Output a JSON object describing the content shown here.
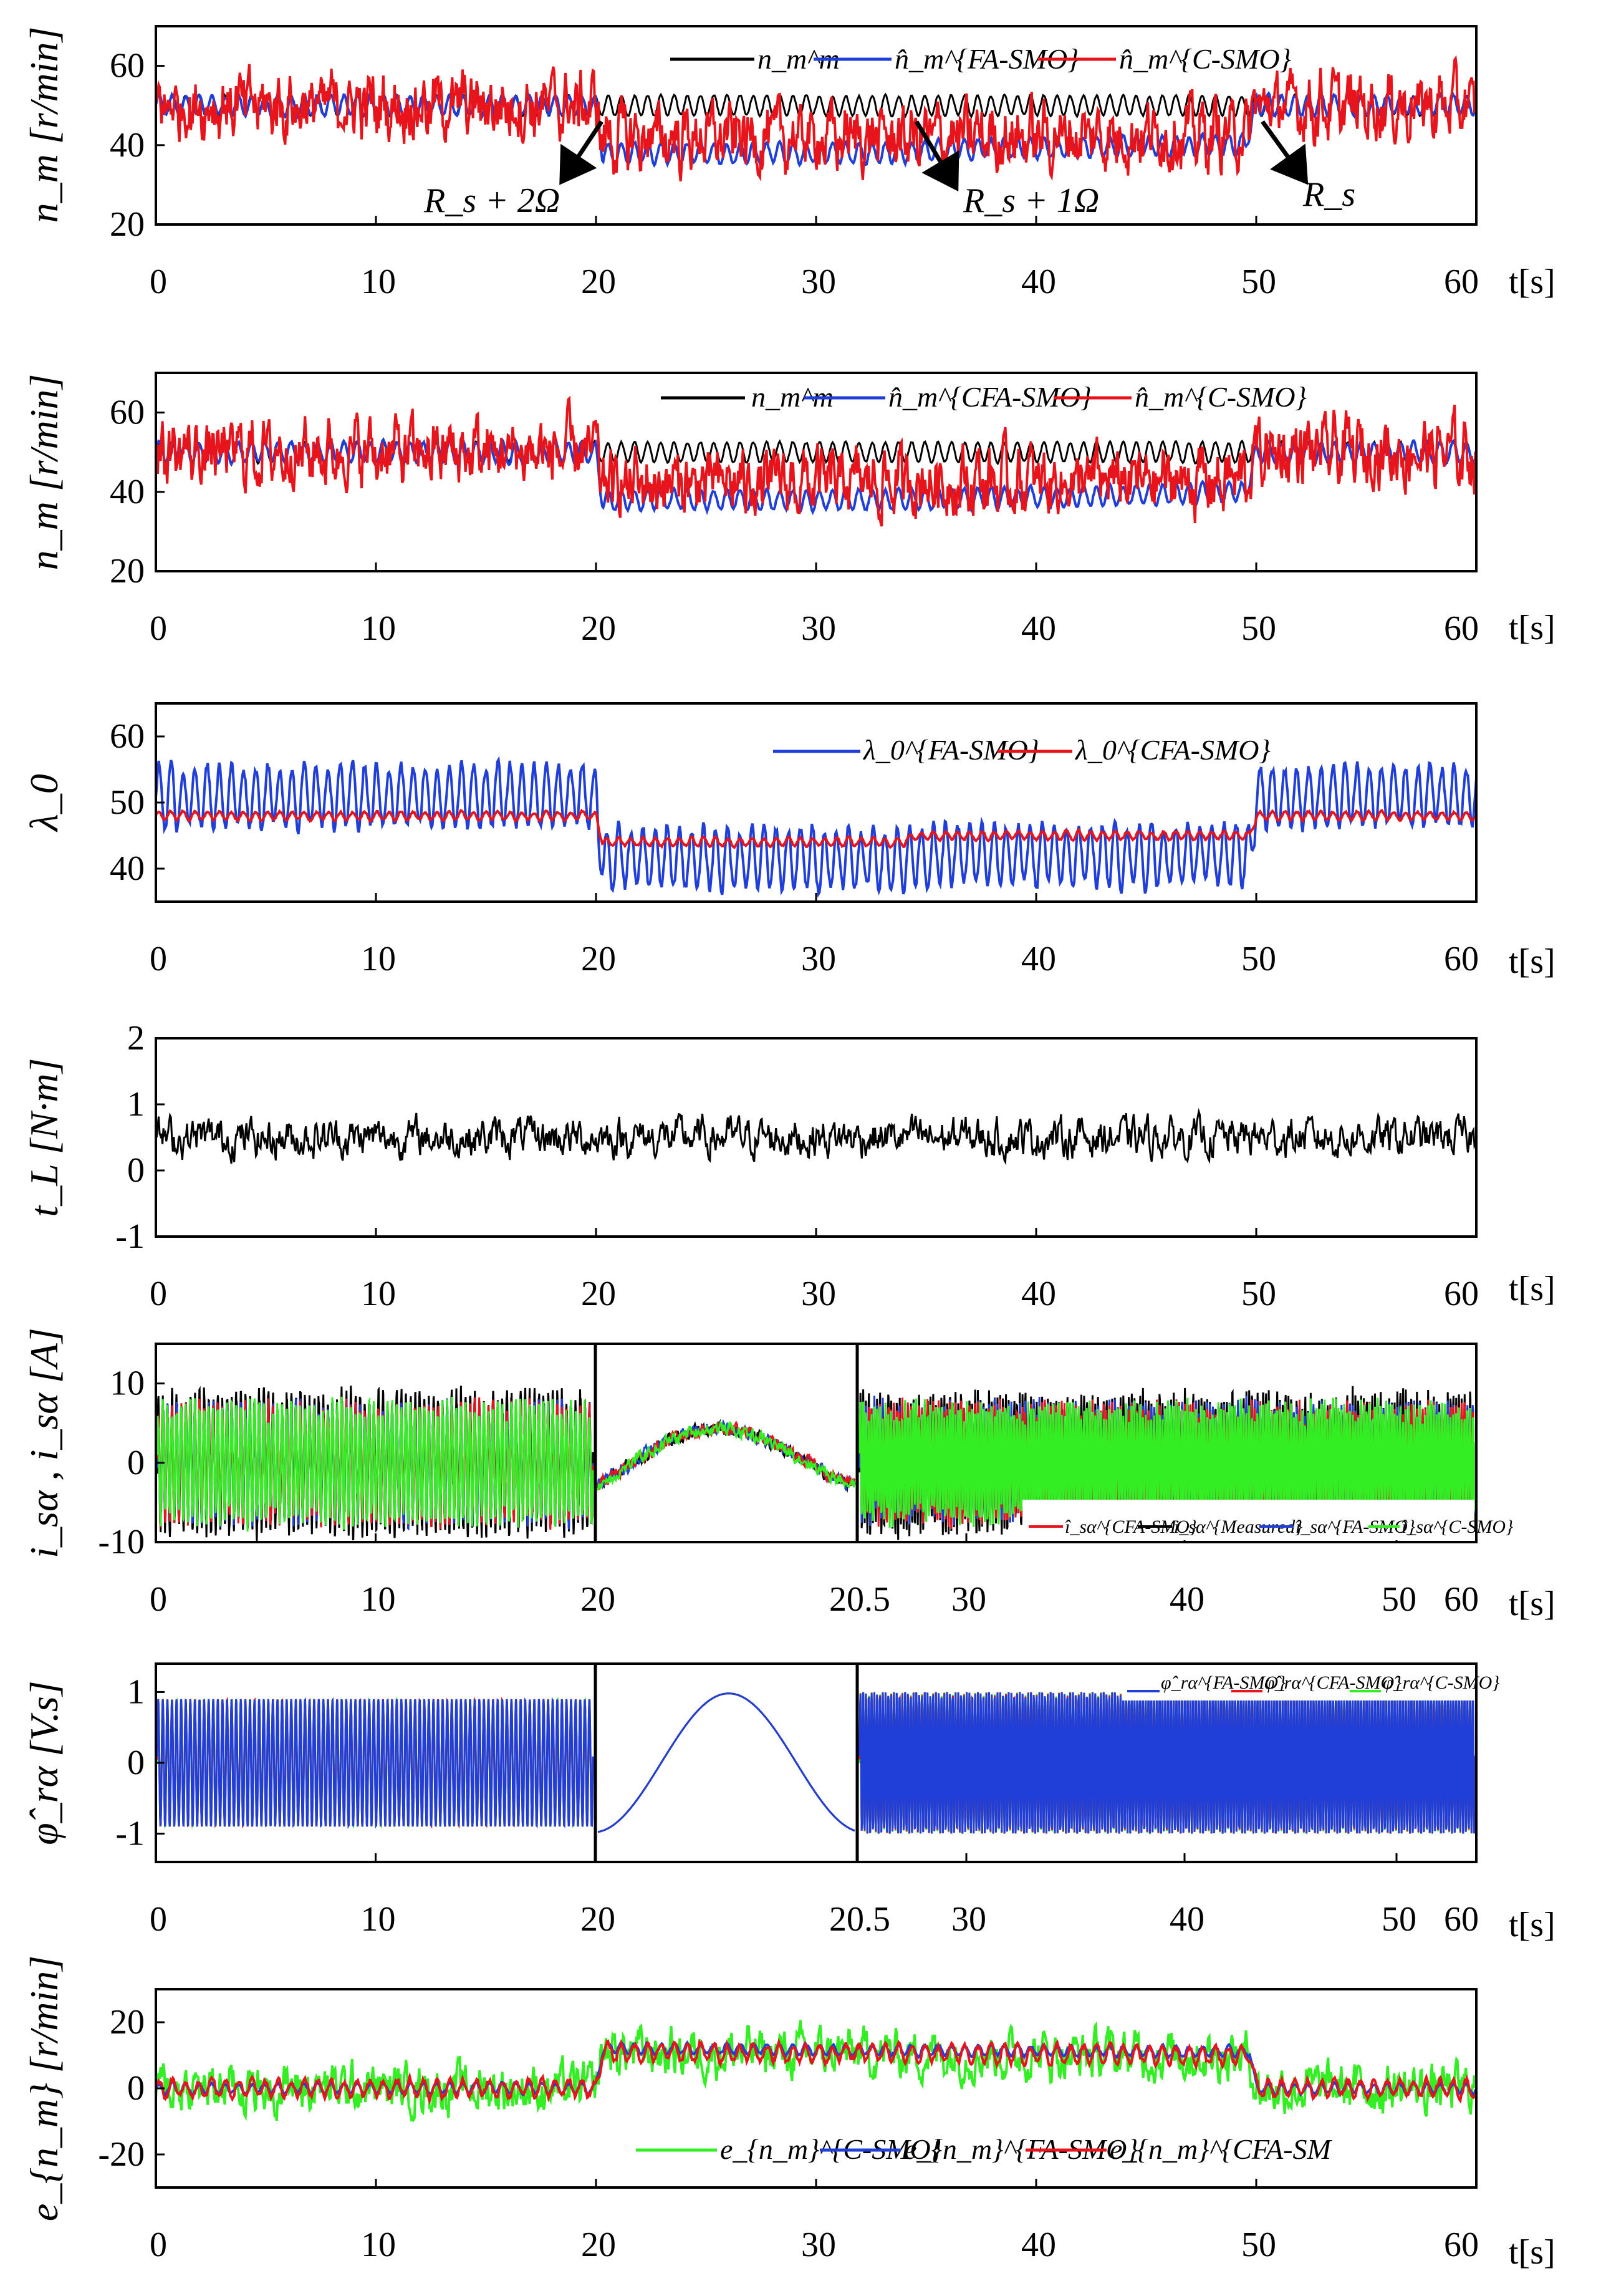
{
  "figure": {
    "colors": {
      "black": "#000000",
      "blue": "#1f3fd8",
      "red": "#e8141c",
      "green": "#33ee22",
      "axis": "#000000"
    }
  },
  "chart_data": [
    {
      "id": "p1",
      "type": "line",
      "ylabel": "n_m [r/min]",
      "xlabel": "t[s]",
      "xlim": [
        0,
        60
      ],
      "ylim": [
        20,
        70
      ],
      "yticks": [
        20,
        40,
        60
      ],
      "xticks": [
        "0",
        "10",
        "20",
        "30",
        "40",
        "50",
        "60"
      ],
      "legend_pos": "top-center",
      "series": [
        {
          "name": "n_m^m",
          "color": "black",
          "base": [
            [
              0,
              50
            ],
            [
              20,
              50
            ],
            [
              50,
              50
            ],
            [
              60,
              50
            ]
          ],
          "osc": 2.5,
          "period": 0.6,
          "noise": 0.3
        },
        {
          "name": "n̂_m^{FA-SMO}",
          "color": "blue",
          "base": [
            [
              0,
              50
            ],
            [
              20,
              50
            ],
            [
              20.3,
              38
            ],
            [
              34,
              38
            ],
            [
              36,
              39
            ],
            [
              49.5,
              40
            ],
            [
              50,
              50
            ],
            [
              60,
              50
            ]
          ],
          "osc": 2.5,
          "period": 0.6,
          "noise": 0.5
        },
        {
          "name": "n̂_m^{C-SMO}",
          "color": "red",
          "base": [
            [
              0,
              50
            ],
            [
              20,
              50
            ],
            [
              20.3,
              42
            ],
            [
              34,
              42
            ],
            [
              36,
              42
            ],
            [
              49.5,
              43
            ],
            [
              50,
              50
            ],
            [
              60,
              50
            ]
          ],
          "osc": 2.0,
          "period": 0.6,
          "noise": 7
        }
      ],
      "annotations": [
        "R_s + 2Ω",
        "R_s + 1Ω",
        "R_s"
      ]
    },
    {
      "id": "p2",
      "type": "line",
      "ylabel": "n_m [r/min]",
      "xlabel": "t[s]",
      "xlim": [
        0,
        60
      ],
      "ylim": [
        20,
        70
      ],
      "yticks": [
        20,
        40,
        60
      ],
      "xticks": [
        "0",
        "10",
        "20",
        "30",
        "40",
        "50",
        "60"
      ],
      "legend_pos": "top-center",
      "series": [
        {
          "name": "n_m^m",
          "color": "black",
          "base": [
            [
              0,
              50
            ],
            [
              20,
              50
            ],
            [
              50,
              50
            ],
            [
              60,
              50
            ]
          ],
          "osc": 2.5,
          "period": 0.6,
          "noise": 0.3
        },
        {
          "name": "n̂_m^{CFA-SMO}",
          "color": "blue",
          "base": [
            [
              0,
              50
            ],
            [
              20,
              50
            ],
            [
              20.3,
              38
            ],
            [
              34,
              38
            ],
            [
              49.5,
              40
            ],
            [
              50,
              50
            ],
            [
              60,
              50
            ]
          ],
          "osc": 2.5,
          "period": 0.6,
          "noise": 0.5
        },
        {
          "name": "n̂_m^{C-SMO}",
          "color": "red",
          "base": [
            [
              0,
              50
            ],
            [
              20,
              50
            ],
            [
              20.3,
              42
            ],
            [
              49.5,
              43
            ],
            [
              50,
              50
            ],
            [
              60,
              50
            ]
          ],
          "osc": 2.0,
          "period": 0.6,
          "noise": 7
        }
      ]
    },
    {
      "id": "p3",
      "type": "line",
      "ylabel": "λ_0",
      "xlabel": "t[s]",
      "xlim": [
        0,
        60
      ],
      "ylim": [
        35,
        65
      ],
      "yticks": [
        40,
        50,
        60
      ],
      "xticks": [
        "0",
        "10",
        "20",
        "30",
        "40",
        "50",
        "60"
      ],
      "legend_pos": "top-right",
      "series": [
        {
          "name": "λ_0^{FA-SMO}",
          "color": "blue",
          "base": [
            [
              0,
              51
            ],
            [
              20,
              51
            ],
            [
              20.3,
              41.5
            ],
            [
              34,
              41.5
            ],
            [
              34.5,
              42
            ],
            [
              49.7,
              42
            ],
            [
              50,
              51
            ],
            [
              60,
              51
            ]
          ],
          "osc": 4.5,
          "period": 0.55,
          "noise": 1
        },
        {
          "name": "λ_0^{CFA-SMO}",
          "color": "red",
          "base": [
            [
              0,
              48
            ],
            [
              20,
              48
            ],
            [
              20.3,
              44
            ],
            [
              34,
              44
            ],
            [
              34.5,
              45
            ],
            [
              49.7,
              45
            ],
            [
              50,
              48
            ],
            [
              60,
              48
            ]
          ],
          "osc": 0.6,
          "period": 0.55,
          "noise": 0.2
        }
      ]
    },
    {
      "id": "p4",
      "type": "line",
      "ylabel": "t_L [N·m]",
      "xlabel": "t[s]",
      "xlim": [
        0,
        60
      ],
      "ylim": [
        -1,
        2
      ],
      "yticks": [
        -1,
        0,
        1,
        2
      ],
      "xticks": [
        "0",
        "10",
        "20",
        "30",
        "40",
        "50",
        "60"
      ],
      "series": [
        {
          "name": "t_L",
          "color": "black",
          "base": [
            [
              0,
              0.5
            ],
            [
              60,
              0.5
            ]
          ],
          "osc": 0,
          "period": 1,
          "noise": 0.25
        }
      ]
    },
    {
      "id": "p5",
      "type": "line",
      "ylabel": "i_sα , i_sα [A]",
      "xlabel": "t[s]",
      "xlim": [
        0,
        60
      ],
      "ylim": [
        -10,
        15
      ],
      "yticks": [
        -10,
        0,
        10
      ],
      "xticks": [
        "0",
        "10",
        "20",
        "20.5",
        "30",
        "40",
        "50",
        "60"
      ],
      "zoom_window": [
        20,
        20.5
      ],
      "legend_pos": "bottom-right",
      "series": [
        {
          "name": "î_sα^{CFA-SMO}",
          "color": "red"
        },
        {
          "name": "i_sα^{Measured}",
          "color": "black"
        },
        {
          "name": "î_sα^{FA-SMO}",
          "color": "blue"
        },
        {
          "name": "î_sα^{C-SMO}",
          "color": "green"
        }
      ],
      "amplitude": 7
    },
    {
      "id": "p6",
      "type": "line",
      "ylabel": "φ̂_rα [V.s]",
      "xlabel": "t[s]",
      "xlim": [
        0,
        60
      ],
      "ylim": [
        -1.4,
        1.4
      ],
      "yticks": [
        -1,
        0,
        1
      ],
      "xticks": [
        "0",
        "10",
        "20",
        "20.5",
        "30",
        "40",
        "50",
        "60"
      ],
      "zoom_window": [
        20,
        20.5
      ],
      "legend_pos": "top-right",
      "series": [
        {
          "name": "φ̂_rα^{FA-SMO}",
          "color": "blue"
        },
        {
          "name": "φ̂_rα^{CFA-SMO}",
          "color": "red"
        },
        {
          "name": "φ̂_rα^{C-SMO}",
          "color": "green"
        }
      ],
      "amplitude": 1
    },
    {
      "id": "p7",
      "type": "line",
      "ylabel": "e_{n_m} [r/min]",
      "xlabel": "t[s]",
      "xlim": [
        0,
        60
      ],
      "ylim": [
        -30,
        30
      ],
      "yticks": [
        -20,
        0,
        20
      ],
      "xticks": [
        "0",
        "10",
        "20",
        "30",
        "40",
        "50",
        "60"
      ],
      "legend_pos": "bottom-center",
      "series": [
        {
          "name": "e_{n_m}^{C-SMO}",
          "color": "green",
          "base": [
            [
              0,
              0
            ],
            [
              20,
              0
            ],
            [
              20.3,
              11
            ],
            [
              49.7,
              10
            ],
            [
              50,
              0
            ],
            [
              60,
              0
            ]
          ],
          "osc": 0,
          "period": 1,
          "noise": 7
        },
        {
          "name": "e_{n_m}^{FA-SMO}",
          "color": "blue",
          "base": [
            [
              0,
              0
            ],
            [
              20,
              0
            ],
            [
              20.3,
              12
            ],
            [
              49.7,
              11
            ],
            [
              50,
              0
            ],
            [
              60,
              0
            ]
          ],
          "osc": 1.5,
          "period": 0.6,
          "noise": 0.5
        },
        {
          "name": "e_{n_m}^{CFA-SM",
          "color": "red",
          "base": [
            [
              0,
              0
            ],
            [
              20,
              0
            ],
            [
              20.3,
              11
            ],
            [
              49.7,
              10
            ],
            [
              50,
              0
            ],
            [
              60,
              0
            ]
          ],
          "osc": 2.5,
          "period": 0.6,
          "noise": 1
        }
      ]
    }
  ]
}
